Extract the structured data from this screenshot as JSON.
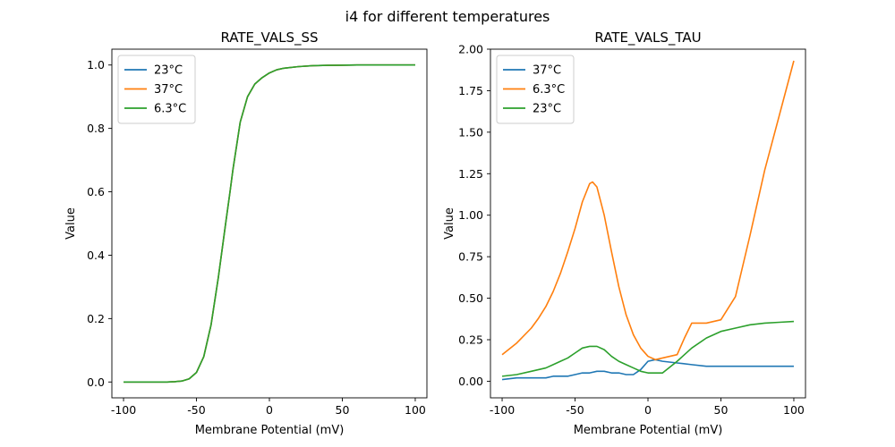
{
  "figure": {
    "suptitle": "i4 for different temperatures"
  },
  "colors": {
    "blue": "#1f77b4",
    "orange": "#ff7f0e",
    "green": "#2ca02c"
  },
  "chart_data": [
    {
      "type": "line",
      "title": "RATE_VALS_SS",
      "xlabel": "Membrane Potential (mV)",
      "ylabel": "Value",
      "xlim": [
        -108,
        108
      ],
      "ylim": [
        -0.05,
        1.05
      ],
      "xticks": [
        -100,
        -50,
        0,
        50,
        100
      ],
      "yticks": [
        0.0,
        0.2,
        0.4,
        0.6,
        0.8,
        1.0
      ],
      "ytick_labels": [
        "0.0",
        "0.2",
        "0.4",
        "0.6",
        "0.8",
        "1.0"
      ],
      "grid": false,
      "legend": "upper-left",
      "series": [
        {
          "name": "23°C",
          "color": "#1f77b4",
          "x": [
            -100,
            -90,
            -80,
            -70,
            -65,
            -60,
            -55,
            -50,
            -45,
            -40,
            -35,
            -30,
            -27,
            -25,
            -22,
            -20,
            -15,
            -10,
            -5,
            0,
            5,
            10,
            20,
            30,
            40,
            60,
            80,
            100
          ],
          "y": [
            0.0,
            0.0,
            0.0,
            0.0,
            0.001,
            0.003,
            0.01,
            0.03,
            0.08,
            0.18,
            0.33,
            0.5,
            0.6,
            0.67,
            0.76,
            0.82,
            0.9,
            0.94,
            0.96,
            0.975,
            0.985,
            0.99,
            0.995,
            0.998,
            0.999,
            1.0,
            1.0,
            1.0
          ]
        },
        {
          "name": "37°C",
          "color": "#ff7f0e",
          "x": [
            -100,
            -90,
            -80,
            -70,
            -65,
            -60,
            -55,
            -50,
            -45,
            -40,
            -35,
            -30,
            -27,
            -25,
            -22,
            -20,
            -15,
            -10,
            -5,
            0,
            5,
            10,
            20,
            30,
            40,
            60,
            80,
            100
          ],
          "y": [
            0.0,
            0.0,
            0.0,
            0.0,
            0.001,
            0.003,
            0.01,
            0.03,
            0.08,
            0.18,
            0.33,
            0.5,
            0.6,
            0.67,
            0.76,
            0.82,
            0.9,
            0.94,
            0.96,
            0.975,
            0.985,
            0.99,
            0.995,
            0.998,
            0.999,
            1.0,
            1.0,
            1.0
          ]
        },
        {
          "name": "6.3°C",
          "color": "#2ca02c",
          "x": [
            -100,
            -90,
            -80,
            -70,
            -65,
            -60,
            -55,
            -50,
            -45,
            -40,
            -35,
            -30,
            -27,
            -25,
            -22,
            -20,
            -15,
            -10,
            -5,
            0,
            5,
            10,
            20,
            30,
            40,
            60,
            80,
            100
          ],
          "y": [
            0.0,
            0.0,
            0.0,
            0.0,
            0.001,
            0.003,
            0.01,
            0.03,
            0.08,
            0.18,
            0.33,
            0.5,
            0.6,
            0.67,
            0.76,
            0.82,
            0.9,
            0.94,
            0.96,
            0.975,
            0.985,
            0.99,
            0.995,
            0.998,
            0.999,
            1.0,
            1.0,
            1.0
          ]
        }
      ]
    },
    {
      "type": "line",
      "title": "RATE_VALS_TAU",
      "xlabel": "Membrane Potential (mV)",
      "ylabel": "Value",
      "xlim": [
        -108,
        108
      ],
      "ylim": [
        -0.1,
        2.0
      ],
      "xticks": [
        -100,
        -50,
        0,
        50,
        100
      ],
      "yticks": [
        0.0,
        0.25,
        0.5,
        0.75,
        1.0,
        1.25,
        1.5,
        1.75,
        2.0
      ],
      "ytick_labels": [
        "0.00",
        "0.25",
        "0.50",
        "0.75",
        "1.00",
        "1.25",
        "1.50",
        "1.75",
        "2.00"
      ],
      "grid": false,
      "legend": "upper-left",
      "series": [
        {
          "name": "37°C",
          "color": "#1f77b4",
          "x": [
            -100,
            -90,
            -80,
            -70,
            -65,
            -60,
            -55,
            -50,
            -45,
            -40,
            -35,
            -30,
            -25,
            -20,
            -15,
            -10,
            -5,
            0,
            5,
            10,
            20,
            30,
            40,
            50,
            60,
            70,
            80,
            90,
            100
          ],
          "y": [
            0.01,
            0.02,
            0.02,
            0.02,
            0.03,
            0.03,
            0.03,
            0.04,
            0.05,
            0.05,
            0.06,
            0.06,
            0.05,
            0.05,
            0.04,
            0.04,
            0.07,
            0.12,
            0.13,
            0.12,
            0.11,
            0.1,
            0.09,
            0.09,
            0.09,
            0.09,
            0.09,
            0.09,
            0.09
          ]
        },
        {
          "name": "6.3°C",
          "color": "#ff7f0e",
          "x": [
            -100,
            -90,
            -80,
            -75,
            -70,
            -65,
            -60,
            -55,
            -50,
            -45,
            -40,
            -38,
            -35,
            -30,
            -25,
            -20,
            -15,
            -10,
            -5,
            0,
            5,
            10,
            20,
            25,
            30,
            40,
            50,
            60,
            70,
            80,
            90,
            100
          ],
          "y": [
            0.16,
            0.23,
            0.32,
            0.38,
            0.45,
            0.54,
            0.65,
            0.78,
            0.92,
            1.08,
            1.19,
            1.2,
            1.17,
            1.0,
            0.78,
            0.57,
            0.4,
            0.28,
            0.2,
            0.15,
            0.13,
            0.14,
            0.16,
            0.26,
            0.35,
            0.35,
            0.37,
            0.51,
            0.88,
            1.27,
            1.6,
            1.93
          ]
        },
        {
          "name": "23°C",
          "color": "#2ca02c",
          "x": [
            -100,
            -90,
            -80,
            -70,
            -65,
            -60,
            -55,
            -50,
            -45,
            -40,
            -35,
            -30,
            -25,
            -20,
            -15,
            -10,
            -5,
            0,
            5,
            10,
            20,
            30,
            40,
            50,
            60,
            70,
            80,
            90,
            100
          ],
          "y": [
            0.03,
            0.04,
            0.06,
            0.08,
            0.1,
            0.12,
            0.14,
            0.17,
            0.2,
            0.21,
            0.21,
            0.19,
            0.15,
            0.12,
            0.1,
            0.08,
            0.06,
            0.05,
            0.05,
            0.05,
            0.12,
            0.2,
            0.26,
            0.3,
            0.32,
            0.34,
            0.35,
            0.355,
            0.36
          ]
        }
      ]
    }
  ]
}
